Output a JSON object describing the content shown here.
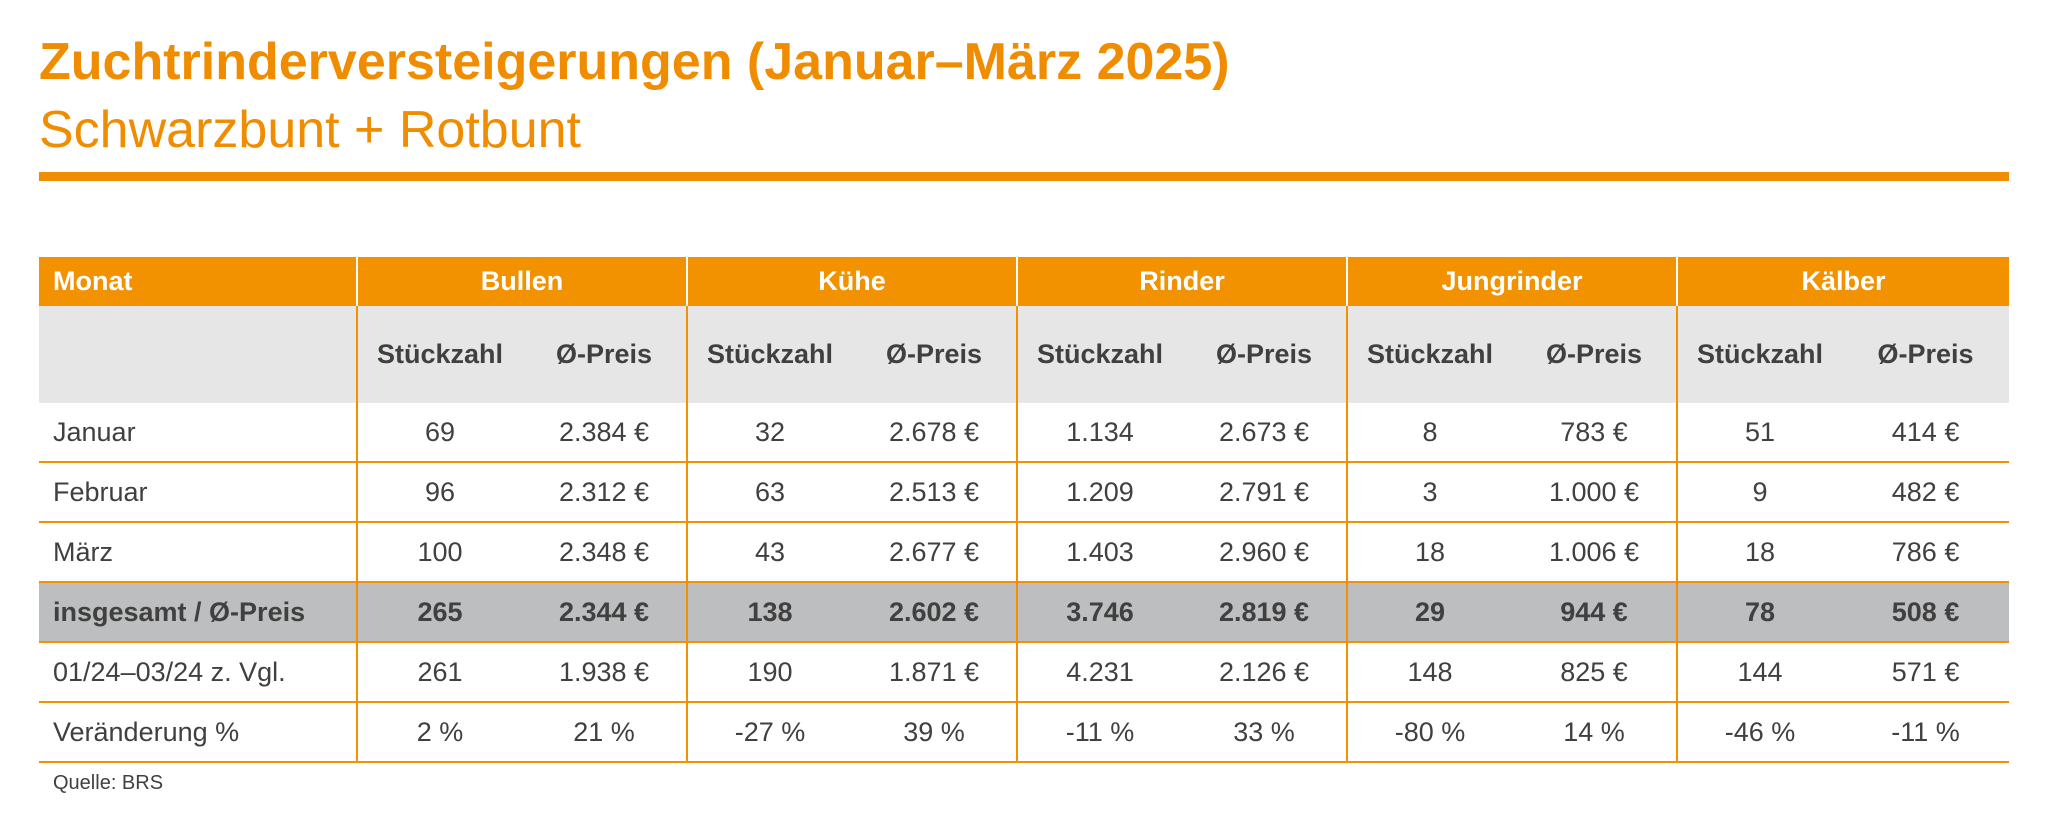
{
  "title": "Zuchtrinderversteigerungen (Januar–März 2025)",
  "subtitle": "Schwarzbunt + Rotbunt",
  "colors": {
    "accent": "#f39200",
    "header_bg": "#e6e6e6",
    "total_bg": "#bdbebf",
    "text": "#404040"
  },
  "table": {
    "first_col_header": "Monat",
    "groups": [
      "Bullen",
      "Kühe",
      "Rinder",
      "Jungrinder",
      "Kälber"
    ],
    "sub_headers": [
      "Stückzahl",
      "Ø-Preis"
    ],
    "rows": [
      {
        "label": "Januar",
        "cells": [
          "69",
          "2.384 €",
          "32",
          "2.678 €",
          "1.134",
          "2.673 €",
          "8",
          "783 €",
          "51",
          "414 €"
        ]
      },
      {
        "label": "Februar",
        "cells": [
          "96",
          "2.312 €",
          "63",
          "2.513 €",
          "1.209",
          "2.791 €",
          "3",
          "1.000 €",
          "9",
          "482 €"
        ]
      },
      {
        "label": "März",
        "cells": [
          "100",
          "2.348 €",
          "43",
          "2.677 €",
          "1.403",
          "2.960 €",
          "18",
          "1.006 €",
          "18",
          "786 €"
        ]
      },
      {
        "label": "insgesamt / Ø-Preis",
        "cells": [
          "265",
          "2.344 €",
          "138",
          "2.602 €",
          "3.746",
          "2.819 €",
          "29",
          "944 €",
          "78",
          "508 €"
        ]
      },
      {
        "label": "01/24–03/24  z. Vgl.",
        "cells": [
          "261",
          "1.938 €",
          "190",
          "1.871 €",
          "4.231",
          "2.126 €",
          "148",
          "825 €",
          "144",
          "571 €"
        ]
      },
      {
        "label": "Veränderung %",
        "cells": [
          "2 %",
          "21 %",
          "-27 %",
          "39 %",
          "-11 %",
          "33 %",
          "-80 %",
          "14 %",
          "-46 %",
          "-11 %"
        ]
      }
    ]
  },
  "source": "Quelle: BRS"
}
